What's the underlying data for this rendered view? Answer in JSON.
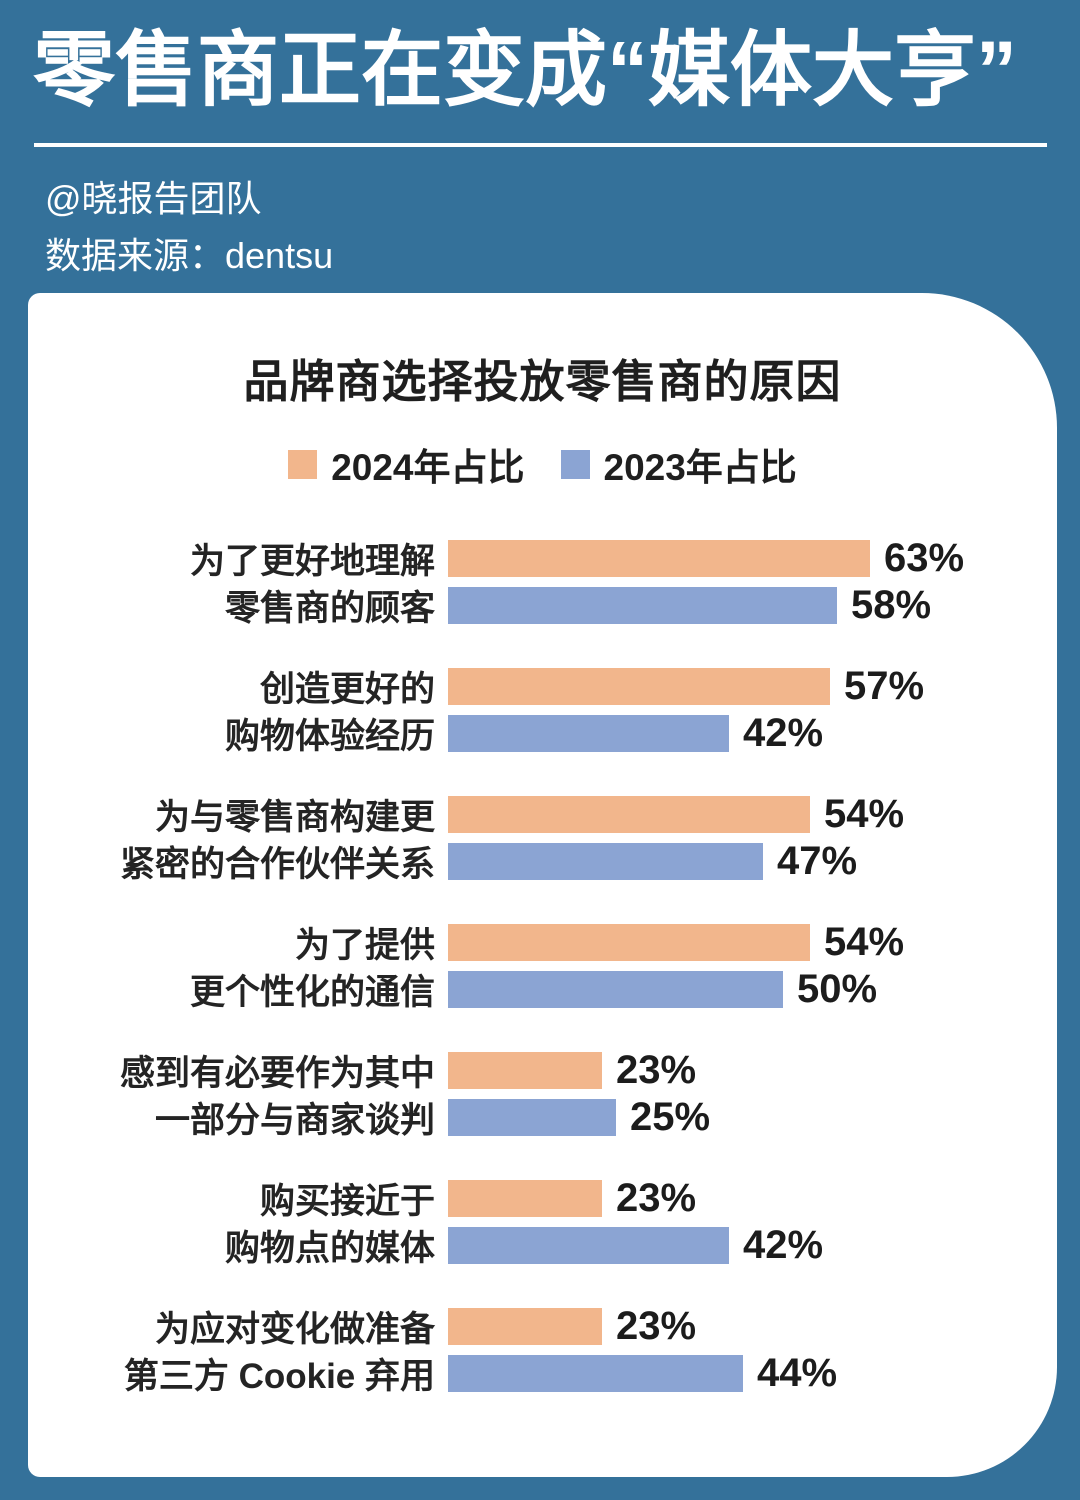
{
  "colors": {
    "background": "#34719a",
    "card": "#ffffff",
    "title_text": "#ffffff",
    "chart_text": "#1f1f1f",
    "bar_2024": "#f2b68c",
    "bar_2023": "#8ba4d3"
  },
  "header": {
    "title": "零售商正在变成“媒体大亨”",
    "byline": "@晓报告团队",
    "source": "数据来源：dentsu"
  },
  "card": {
    "chart_title": "品牌商选择投放零售商的原因"
  },
  "chart_data": {
    "type": "bar",
    "orientation": "horizontal",
    "title": "品牌商选择投放零售商的原因",
    "value_suffix": "%",
    "xlim": [
      0,
      63
    ],
    "legend_position": "top-center",
    "grid": false,
    "series": [
      {
        "name": "2024年占比",
        "color": "#f2b68c"
      },
      {
        "name": "2023年占比",
        "color": "#8ba4d3"
      }
    ],
    "groups": [
      {
        "label_lines": [
          "为了更好地理解",
          "零售商的顾客"
        ],
        "values": [
          63,
          58
        ],
        "value_labels": [
          "63%",
          "58%"
        ]
      },
      {
        "label_lines": [
          "创造更好的",
          "购物体验经历"
        ],
        "values": [
          57,
          42
        ],
        "value_labels": [
          "57%",
          "42%"
        ]
      },
      {
        "label_lines": [
          "为与零售商构建更",
          "紧密的合作伙伴关系"
        ],
        "values": [
          54,
          47
        ],
        "value_labels": [
          "54%",
          "47%"
        ]
      },
      {
        "label_lines": [
          "为了提供",
          "更个性化的通信"
        ],
        "values": [
          54,
          50
        ],
        "value_labels": [
          "54%",
          "50%"
        ]
      },
      {
        "label_lines": [
          "感到有必要作为其中",
          "一部分与商家谈判"
        ],
        "values": [
          23,
          25
        ],
        "value_labels": [
          "23%",
          "25%"
        ]
      },
      {
        "label_lines": [
          "购买接近于",
          "购物点的媒体"
        ],
        "values": [
          23,
          42
        ],
        "value_labels": [
          "23%",
          "42%"
        ]
      },
      {
        "label_lines": [
          "为应对变化做准备",
          "第三方 Cookie 弃用"
        ],
        "values": [
          23,
          44
        ],
        "value_labels": [
          "23%",
          "44%"
        ]
      }
    ]
  }
}
